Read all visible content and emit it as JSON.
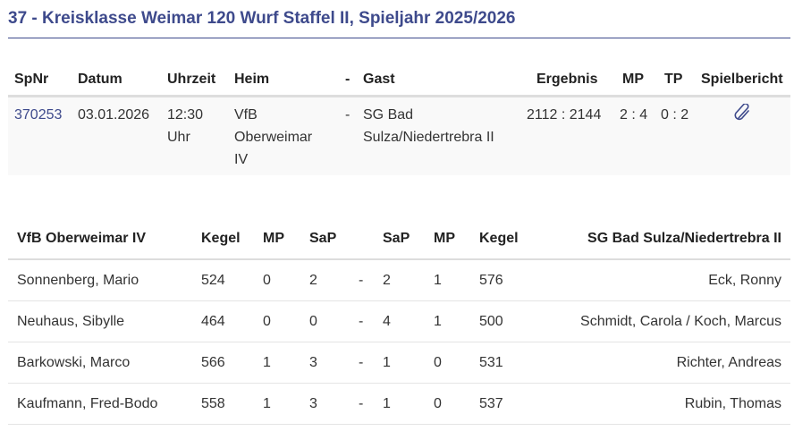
{
  "title": "37 - Kreisklasse Weimar 120 Wurf Staffel II, Spieljahr 2025/2026",
  "match_table": {
    "headers": {
      "spnr": "SpNr",
      "datum": "Datum",
      "uhrzeit": "Uhrzeit",
      "heim": "Heim",
      "dash": "-",
      "gast": "Gast",
      "ergebnis": "Ergebnis",
      "mp": "MP",
      "tp": "TP",
      "spielbericht": "Spielbericht"
    },
    "row": {
      "spnr": "370253",
      "datum": "03.01.2026",
      "uhrzeit_1": "12:30",
      "uhrzeit_2": "Uhr",
      "heim_1": "VfB",
      "heim_2": "Oberweimar",
      "heim_3": "IV",
      "dash": "-",
      "gast_1": "SG Bad",
      "gast_2": "Sulza/Niedertrebra II",
      "ergebnis": "2112 : 2144",
      "mp": "2 : 4",
      "tp": "0 : 2",
      "spielbericht_icon": "paperclip-icon"
    }
  },
  "player_table": {
    "headers": {
      "home": "VfB Oberweimar IV",
      "kegel_h": "Kegel",
      "mp_h": "MP",
      "sap_h": "SaP",
      "dash": "",
      "sap_g": "SaP",
      "mp_g": "MP",
      "kegel_g": "Kegel",
      "guest": "SG Bad Sulza/Niedertrebra II"
    },
    "rows": [
      {
        "home": "Sonnenberg, Mario",
        "kegel_h": "524",
        "mp_h": "0",
        "sap_h": "2",
        "dash": "-",
        "sap_g": "2",
        "mp_g": "1",
        "kegel_g": "576",
        "guest": "Eck, Ronny"
      },
      {
        "home": "Neuhaus, Sibylle",
        "kegel_h": "464",
        "mp_h": "0",
        "sap_h": "0",
        "dash": "-",
        "sap_g": "4",
        "mp_g": "1",
        "kegel_g": "500",
        "guest": "Schmidt, Carola / Koch, Marcus"
      },
      {
        "home": "Barkowski, Marco",
        "kegel_h": "566",
        "mp_h": "1",
        "sap_h": "3",
        "dash": "-",
        "sap_g": "1",
        "mp_g": "0",
        "kegel_g": "531",
        "guest": "Richter, Andreas"
      },
      {
        "home": "Kaufmann, Fred-Bodo",
        "kegel_h": "558",
        "mp_h": "1",
        "sap_h": "3",
        "dash": "-",
        "sap_g": "1",
        "mp_g": "0",
        "kegel_g": "537",
        "guest": "Rubin, Thomas"
      }
    ]
  },
  "colors": {
    "accent": "#3e4a8c"
  }
}
